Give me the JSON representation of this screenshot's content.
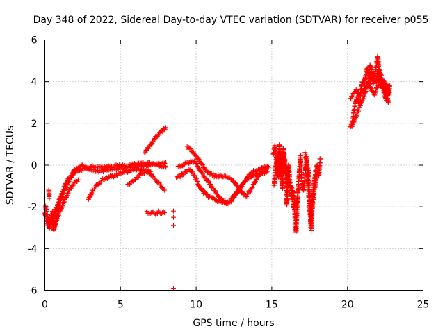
{
  "chart_data": {
    "type": "scatter",
    "title": "Day 348 of 2022, Sidereal Day-to-day VTEC variation (SDTVAR) for receiver p055",
    "xlabel": "GPS time / hours",
    "ylabel": "SDTVAR / TECUs",
    "xlim": [
      0,
      25
    ],
    "ylim": [
      -6,
      6
    ],
    "xticks": [
      0,
      5,
      10,
      15,
      20,
      25
    ],
    "yticks": [
      -6,
      -4,
      -2,
      0,
      2,
      4,
      6
    ],
    "grid": true,
    "marker": "+",
    "color": "#ff0000",
    "series": [
      {
        "name": "SDTVAR",
        "segments": [
          {
            "x": [
              0.0,
              0.15,
              0.3,
              0.45,
              0.6,
              0.75,
              0.9,
              1.0
            ],
            "y": [
              -2.3,
              -2.8,
              -3.0,
              -2.6,
              -3.1,
              -2.7,
              -2.4,
              -2.0
            ]
          },
          {
            "x": [
              0.05,
              0.2,
              0.35,
              0.5,
              0.65,
              0.8,
              0.95
            ],
            "y": [
              -2.0,
              -2.5,
              -2.8,
              -2.2,
              -2.9,
              -2.4,
              -2.1
            ]
          },
          {
            "x": [
              0.25,
              0.3
            ],
            "y": [
              -1.2,
              -1.6
            ]
          },
          {
            "x": [
              0.3,
              0.6,
              0.9,
              1.2,
              1.5,
              1.8,
              2.1,
              2.4,
              2.7,
              3.0,
              3.5,
              4.0,
              4.5,
              5.0,
              5.5,
              6.0,
              6.5,
              7.0,
              7.5,
              8.0
            ],
            "y": [
              -2.8,
              -2.3,
              -1.8,
              -1.2,
              -0.7,
              -0.4,
              -0.15,
              0.0,
              -0.1,
              -0.2,
              -0.3,
              -0.25,
              -0.2,
              -0.15,
              -0.1,
              -0.05,
              0.0,
              0.05,
              0.0,
              -0.1
            ]
          },
          {
            "x": [
              0.6,
              0.9,
              1.2,
              1.5,
              1.8,
              2.1,
              2.5,
              3.0,
              3.5,
              4.0,
              4.5,
              5.0,
              5.5,
              6.0,
              6.5,
              7.0,
              7.5,
              8.0
            ],
            "y": [
              -2.5,
              -1.9,
              -1.4,
              -0.9,
              -0.5,
              -0.3,
              -0.2,
              -0.1,
              -0.05,
              -0.1,
              -0.05,
              0.0,
              -0.05,
              0.05,
              0.1,
              0.1,
              0.05,
              0.15
            ]
          },
          {
            "x": [
              1.0,
              1.3,
              1.6,
              1.9,
              2.2
            ],
            "y": [
              -2.2,
              -1.7,
              -1.2,
              -0.9,
              -0.7
            ]
          },
          {
            "x": [
              2.9,
              3.2,
              3.5,
              3.8,
              4.2,
              4.6,
              5.0,
              5.4,
              5.8,
              6.2,
              6.6,
              7.0
            ],
            "y": [
              -1.6,
              -1.2,
              -0.9,
              -0.7,
              -0.6,
              -0.5,
              -0.4,
              -0.3,
              -0.25,
              -0.2,
              -0.25,
              -0.3
            ]
          },
          {
            "x": [
              5.5,
              5.8,
              6.1,
              6.4,
              6.7,
              7.0,
              7.3,
              7.6,
              7.9
            ],
            "y": [
              -0.9,
              -0.8,
              -0.6,
              -0.4,
              -0.3,
              -0.4,
              -0.7,
              -0.9,
              -1.2
            ]
          },
          {
            "x": [
              6.6,
              6.8,
              7.0,
              7.2,
              7.4,
              7.6,
              7.8,
              8.0
            ],
            "y": [
              0.6,
              0.8,
              1.0,
              1.2,
              1.4,
              1.55,
              1.7,
              1.8
            ]
          },
          {
            "x": [
              6.7,
              6.9,
              7.1,
              7.3,
              7.5,
              7.7,
              7.9
            ],
            "y": [
              -2.25,
              -2.3,
              -2.28,
              -2.3,
              -2.25,
              -2.3,
              -2.28
            ]
          },
          {
            "x": [
              8.5,
              8.5,
              8.5,
              8.5
            ],
            "y": [
              -2.2,
              -2.5,
              -2.9,
              -5.9
            ]
          },
          {
            "x": [
              8.7,
              9.0,
              9.3,
              9.6,
              9.9,
              10.2,
              10.5,
              10.8,
              11.1,
              11.4,
              11.7,
              12.0,
              12.3,
              12.6,
              12.9,
              13.2,
              13.5,
              13.8,
              14.1,
              14.4,
              14.7
            ],
            "y": [
              -0.6,
              -0.5,
              -0.3,
              -0.2,
              -0.5,
              -1.0,
              -1.3,
              -1.5,
              -1.6,
              -1.7,
              -1.75,
              -1.8,
              -1.7,
              -1.4,
              -1.1,
              -0.8,
              -0.6,
              -0.5,
              -0.45,
              -0.4,
              -0.3
            ]
          },
          {
            "x": [
              8.8,
              9.1,
              9.4,
              9.7,
              10.0,
              10.3,
              10.6,
              10.9,
              11.2,
              11.5,
              11.8,
              12.1
            ],
            "y": [
              -0.1,
              0.0,
              0.1,
              0.2,
              0.1,
              -0.3,
              -0.6,
              -0.9,
              -1.2,
              -1.5,
              -1.7,
              -1.85
            ]
          },
          {
            "x": [
              9.4,
              9.7,
              10.0,
              10.3,
              10.6,
              10.9,
              11.2,
              11.5,
              11.8,
              12.1,
              12.4,
              12.7,
              13.0,
              13.3,
              13.6,
              13.9,
              14.2,
              14.5,
              14.8
            ],
            "y": [
              0.85,
              0.7,
              0.4,
              0.1,
              -0.2,
              -0.4,
              -0.5,
              -0.5,
              -0.55,
              -0.6,
              -0.7,
              -1.0,
              -1.3,
              -1.5,
              -1.2,
              -0.8,
              -0.4,
              -0.2,
              -0.1
            ]
          },
          {
            "x": [
              12.3,
              12.6,
              12.9,
              13.2,
              13.5,
              13.8,
              14.1,
              14.4,
              14.7
            ],
            "y": [
              -1.6,
              -1.4,
              -1.1,
              -0.8,
              -0.5,
              -0.3,
              -0.2,
              -0.1,
              -0.05
            ]
          },
          {
            "x": [
              15.1,
              15.2,
              15.3,
              15.4,
              15.5,
              15.6,
              15.7,
              15.8,
              15.9,
              16.0,
              16.1,
              16.2,
              16.3,
              16.4,
              16.5,
              16.6,
              16.7,
              16.8,
              16.9,
              17.0
            ],
            "y": [
              0.5,
              0.9,
              0.3,
              -0.5,
              1.0,
              0.1,
              -1.2,
              0.6,
              -0.2,
              -1.9,
              0.0,
              -0.8,
              -1.4,
              -1.8,
              -2.2,
              -3.2,
              -1.5,
              -0.5,
              0.4,
              -1.0
            ]
          },
          {
            "x": [
              15.15,
              15.25,
              15.35,
              15.45,
              15.55,
              15.65,
              15.75,
              15.85,
              16.0,
              16.2,
              16.4,
              16.6,
              16.8
            ],
            "y": [
              -1.0,
              -0.2,
              0.4,
              -0.6,
              0.7,
              -0.3,
              0.8,
              0.0,
              -0.6,
              -0.9,
              -1.3,
              -2.0,
              -1.1
            ]
          },
          {
            "x": [
              17.0,
              17.1,
              17.2,
              17.3,
              17.4,
              17.5,
              17.6,
              17.7,
              17.8,
              17.9,
              18.0,
              18.1,
              18.2
            ],
            "y": [
              -0.8,
              -1.2,
              -0.5,
              0.2,
              -0.9,
              -2.0,
              -3.1,
              -1.5,
              -0.8,
              -0.3,
              0.0,
              -0.5,
              0.3
            ]
          },
          {
            "x": [
              17.2,
              17.4,
              17.6,
              17.8,
              18.0
            ],
            "y": [
              0.6,
              -0.2,
              -2.5,
              -1.2,
              -0.4
            ]
          },
          {
            "x": [
              20.2,
              20.3,
              20.4,
              20.5,
              20.6,
              20.7,
              20.8,
              20.9,
              21.0,
              21.1,
              21.2,
              21.3,
              21.4,
              21.5,
              21.6,
              21.7,
              21.8,
              21.9,
              22.0,
              22.1,
              22.2,
              22.3,
              22.4,
              22.5,
              22.6,
              22.7,
              22.8
            ],
            "y": [
              1.8,
              2.0,
              2.4,
              2.9,
              3.2,
              3.0,
              3.4,
              3.6,
              4.0,
              3.8,
              4.3,
              4.6,
              4.2,
              4.8,
              4.5,
              3.9,
              4.3,
              4.7,
              5.2,
              4.4,
              3.8,
              4.0,
              3.5,
              3.2,
              3.9,
              3.6,
              3.4
            ]
          },
          {
            "x": [
              20.2,
              20.4,
              20.6,
              20.8,
              21.0,
              21.2,
              21.4,
              21.6,
              21.8,
              22.0,
              22.2,
              22.4,
              22.6,
              22.8
            ],
            "y": [
              3.2,
              3.4,
              3.6,
              3.3,
              3.5,
              3.7,
              4.0,
              3.6,
              3.4,
              3.8,
              4.2,
              3.7,
              3.1,
              3.8
            ]
          },
          {
            "x": [
              20.3,
              20.5,
              20.7,
              20.9,
              21.1,
              21.3,
              21.5,
              21.7,
              21.9,
              22.1,
              22.3,
              22.5,
              22.7
            ],
            "y": [
              1.9,
              2.2,
              2.6,
              3.0,
              3.3,
              3.8,
              4.1,
              4.4,
              4.0,
              4.6,
              4.1,
              3.9,
              3.0
            ]
          }
        ]
      }
    ]
  }
}
